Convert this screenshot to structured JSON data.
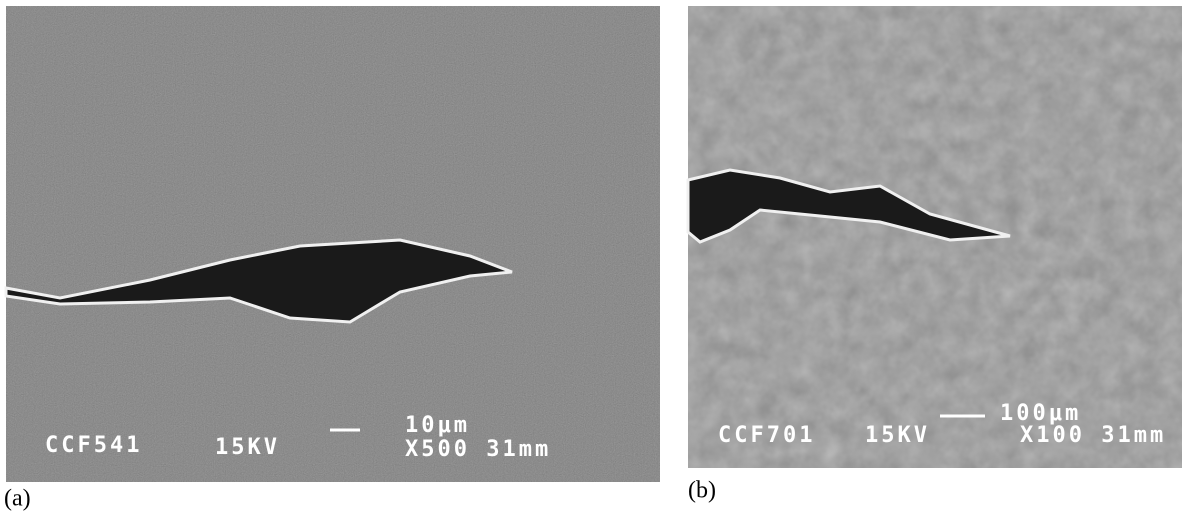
{
  "panels": [
    {
      "caption": "(a)",
      "scale_bar": "10μm",
      "specimen": "CCF541",
      "voltage": "15KV",
      "magnification": "X500 31mm"
    },
    {
      "caption": "(b)",
      "scale_bar": "100μm",
      "specimen": "CCF701",
      "voltage": "15KV",
      "magnification": "X100 31mm"
    }
  ]
}
